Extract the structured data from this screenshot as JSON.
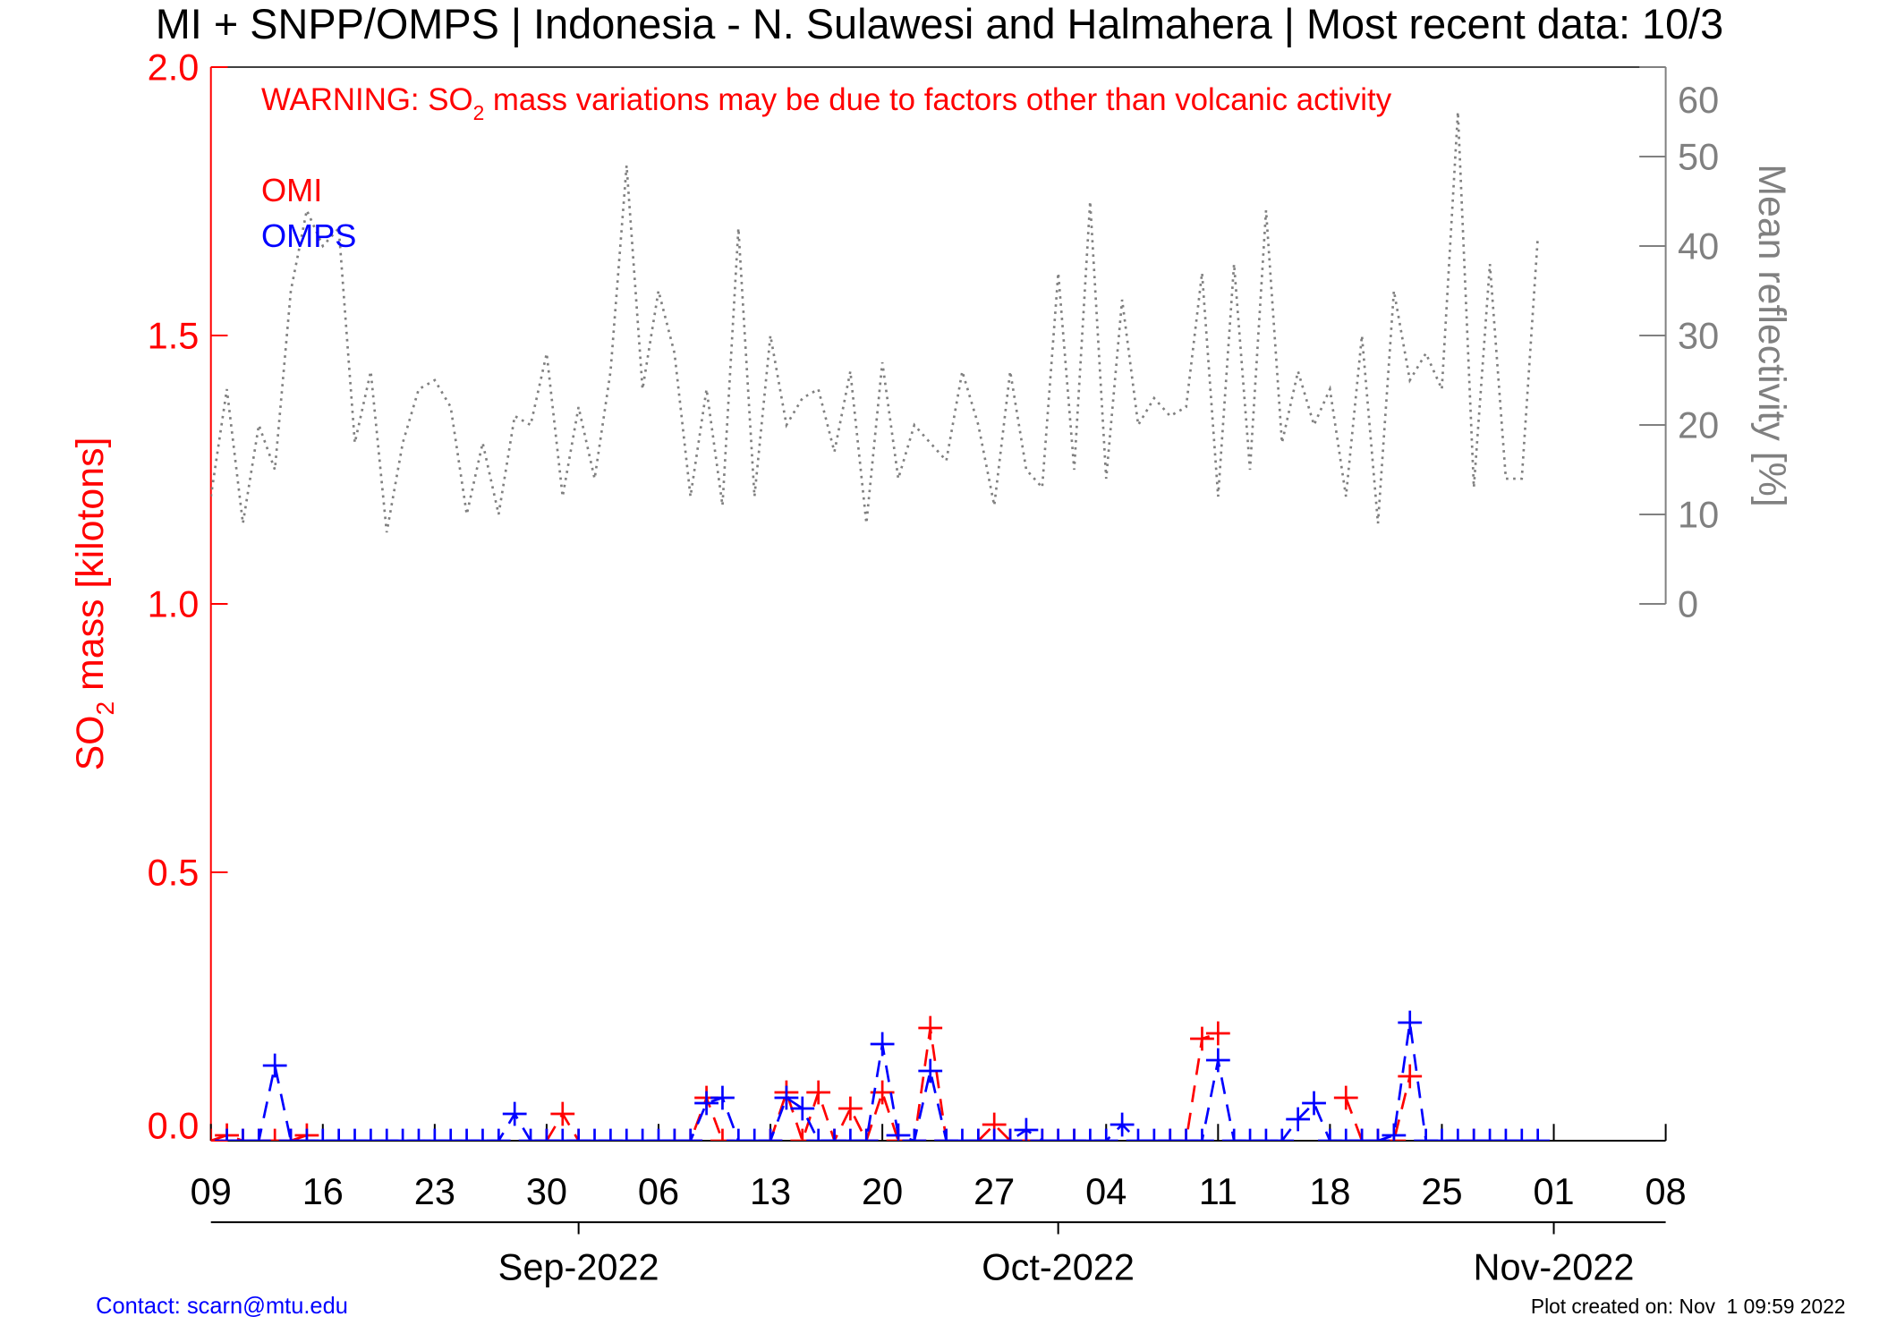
{
  "chart_data": {
    "type": "line",
    "title": "MI + SNPP/OMPS | Indonesia - N. Sulawesi and Halmahera | Most recent data: 10/3",
    "warning": {
      "before": "WARNING: SO",
      "sub": "2",
      "after": " mass variations may be due to factors other than volcanic activity"
    },
    "ylabel": {
      "before": "SO",
      "sub": "2",
      "after": " mass [kilotons]"
    },
    "y2label": "Mean reflectivity [%]",
    "contact": "Contact: scarn@mtu.edu",
    "created": "Plot created on: Nov  1 09:59 2022",
    "xlim": [
      "2022-08-09",
      "2022-11-08"
    ],
    "xticks": [
      {
        "value": "2022-08-09",
        "label": "09"
      },
      {
        "value": "2022-08-16",
        "label": "16"
      },
      {
        "value": "2022-08-23",
        "label": "23"
      },
      {
        "value": "2022-08-30",
        "label": "30"
      },
      {
        "value": "2022-09-06",
        "label": "06"
      },
      {
        "value": "2022-09-13",
        "label": "13"
      },
      {
        "value": "2022-09-20",
        "label": "20"
      },
      {
        "value": "2022-09-27",
        "label": "27"
      },
      {
        "value": "2022-10-04",
        "label": "04"
      },
      {
        "value": "2022-10-11",
        "label": "11"
      },
      {
        "value": "2022-10-18",
        "label": "18"
      },
      {
        "value": "2022-10-25",
        "label": "25"
      },
      {
        "value": "2022-11-01",
        "label": "01"
      },
      {
        "value": "2022-11-08",
        "label": "08"
      }
    ],
    "month_ticks": [
      {
        "value": "2022-09-01",
        "label": "Sep-2022"
      },
      {
        "value": "2022-10-01",
        "label": "Oct-2022"
      },
      {
        "value": "2022-11-01",
        "label": "Nov-2022"
      }
    ],
    "ylim": [
      0,
      2
    ],
    "yticks": [
      {
        "value": 0,
        "label": "0.0"
      },
      0.5,
      {
        "value": 1,
        "label": "1.0"
      },
      1.5,
      {
        "value": 2,
        "label": "2.0"
      }
    ],
    "y2lim": [
      -60,
      60
    ],
    "y2ticks": [
      0,
      10,
      20,
      30,
      40,
      50,
      60
    ],
    "x": [
      "2022-08-09",
      "2022-08-10",
      "2022-08-11",
      "2022-08-12",
      "2022-08-13",
      "2022-08-14",
      "2022-08-15",
      "2022-08-16",
      "2022-08-17",
      "2022-08-18",
      "2022-08-19",
      "2022-08-20",
      "2022-08-21",
      "2022-08-22",
      "2022-08-23",
      "2022-08-24",
      "2022-08-25",
      "2022-08-26",
      "2022-08-27",
      "2022-08-28",
      "2022-08-29",
      "2022-08-30",
      "2022-08-31",
      "2022-09-01",
      "2022-09-02",
      "2022-09-03",
      "2022-09-04",
      "2022-09-05",
      "2022-09-06",
      "2022-09-07",
      "2022-09-08",
      "2022-09-09",
      "2022-09-10",
      "2022-09-11",
      "2022-09-12",
      "2022-09-13",
      "2022-09-14",
      "2022-09-15",
      "2022-09-16",
      "2022-09-17",
      "2022-09-18",
      "2022-09-19",
      "2022-09-20",
      "2022-09-21",
      "2022-09-22",
      "2022-09-23",
      "2022-09-24",
      "2022-09-25",
      "2022-09-26",
      "2022-09-27",
      "2022-09-28",
      "2022-09-29",
      "2022-09-30",
      "2022-10-01",
      "2022-10-02",
      "2022-10-03",
      "2022-10-04",
      "2022-10-05",
      "2022-10-06",
      "2022-10-07",
      "2022-10-08",
      "2022-10-09",
      "2022-10-10",
      "2022-10-11",
      "2022-10-12",
      "2022-10-13",
      "2022-10-14",
      "2022-10-15",
      "2022-10-16",
      "2022-10-17",
      "2022-10-18",
      "2022-10-19",
      "2022-10-20",
      "2022-10-21",
      "2022-10-22",
      "2022-10-23",
      "2022-10-24",
      "2022-10-25",
      "2022-10-26",
      "2022-10-27",
      "2022-10-28",
      "2022-10-29",
      "2022-10-30",
      "2022-10-31"
    ],
    "series": [
      {
        "name": "OMI",
        "color": "#ff0000",
        "style": "dashed",
        "marker": "plus",
        "values": [
          0,
          0.01,
          0,
          0,
          0,
          0,
          0.01,
          null,
          null,
          null,
          null,
          null,
          null,
          null,
          null,
          null,
          null,
          null,
          null,
          null,
          null,
          0,
          0.05,
          0,
          null,
          null,
          null,
          null,
          null,
          0,
          0,
          0.08,
          0,
          null,
          null,
          0,
          0.09,
          0,
          0.09,
          0,
          0.06,
          0,
          0.09,
          0,
          0,
          0.21,
          0,
          null,
          0,
          0.03,
          0,
          0,
          0,
          0,
          0,
          null,
          null,
          null,
          null,
          null,
          0,
          0,
          0.19,
          0.2,
          null,
          null,
          null,
          null,
          null,
          null,
          null,
          0.08,
          0,
          0,
          0,
          0.12,
          null,
          null,
          null,
          0,
          null,
          null,
          null,
          null
        ]
      },
      {
        "name": "OMPS",
        "color": "#0000ff",
        "style": "dashed",
        "marker": "plus",
        "values": [
          null,
          0,
          0,
          0,
          0.14,
          0,
          0,
          0,
          0,
          0,
          0,
          0,
          0,
          0,
          0,
          0,
          0,
          0,
          0,
          0.05,
          0,
          0,
          0,
          0,
          0,
          0,
          0,
          0,
          0,
          0,
          0,
          0.07,
          0.08,
          0,
          0,
          0,
          0.08,
          0.06,
          0,
          0,
          0,
          0,
          0.18,
          0.01,
          0,
          0.13,
          0,
          0,
          0,
          0,
          0,
          0.02,
          0,
          0,
          0,
          0,
          0,
          0.03,
          0,
          0,
          0,
          0,
          0,
          0.15,
          0,
          0,
          0,
          0,
          0.04,
          0.07,
          0,
          0,
          0,
          0,
          0.01,
          0.22,
          0,
          0,
          0,
          0,
          0,
          0,
          0,
          0
        ]
      },
      {
        "color": "#808080",
        "style": "dotted",
        "axis": "y2",
        "values": [
          12,
          24,
          9,
          20,
          15,
          35,
          44,
          40,
          42,
          18,
          26,
          8,
          18,
          24,
          25,
          22,
          10,
          18,
          10,
          21,
          20,
          28,
          12,
          22,
          14,
          26,
          49,
          24,
          35,
          28,
          12,
          24,
          11,
          42,
          12,
          30,
          20,
          23,
          24,
          17,
          26,
          9,
          27,
          14,
          20,
          18,
          16,
          26,
          20,
          11,
          26,
          15,
          13,
          37,
          15,
          45,
          14,
          34,
          20,
          23,
          21,
          22,
          37,
          12,
          38,
          15,
          44,
          18,
          26,
          20,
          24,
          12,
          30,
          9,
          35,
          25,
          28,
          24,
          55,
          13,
          38,
          14,
          14,
          41
        ]
      }
    ]
  }
}
